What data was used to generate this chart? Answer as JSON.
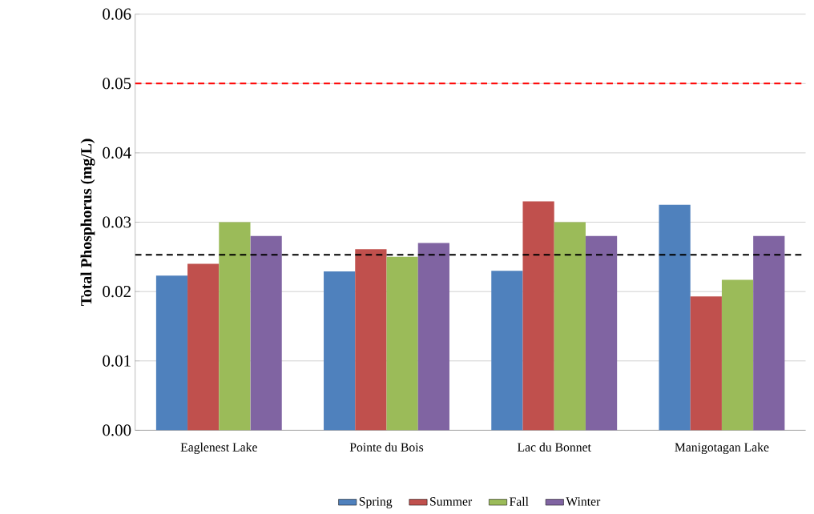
{
  "chart_data": {
    "type": "bar",
    "ylabel": "Total Phosphorus (mg/L)",
    "categories": [
      "Eaglenest Lake",
      "Pointe du Bois",
      "Lac du Bonnet",
      "Manigotagan Lake"
    ],
    "series": [
      {
        "name": "Spring",
        "color": "#4f81bd",
        "values": [
          0.0223,
          0.0229,
          0.023,
          0.0325
        ]
      },
      {
        "name": "Summer",
        "color": "#c0504d",
        "values": [
          0.024,
          0.0261,
          0.033,
          0.0193
        ]
      },
      {
        "name": "Fall",
        "color": "#9bbb59",
        "values": [
          0.03,
          0.025,
          0.03,
          0.0217
        ]
      },
      {
        "name": "Winter",
        "color": "#8064a2",
        "values": [
          0.028,
          0.027,
          0.028,
          0.028
        ]
      }
    ],
    "ylim": [
      0,
      0.06
    ],
    "yticks": [
      {
        "value": 0,
        "label": "0.00"
      },
      0.01,
      0.02,
      0.03,
      0.04,
      0.05,
      0.06
    ],
    "grid": "y",
    "legend": "bottom",
    "ref_lines": [
      {
        "axis": "y",
        "value": 0.05,
        "color": "#ff0000",
        "line_style": "dashed"
      },
      {
        "axis": "y",
        "value": 0.0253,
        "color": "#000000",
        "line_style": "dashed"
      }
    ]
  }
}
